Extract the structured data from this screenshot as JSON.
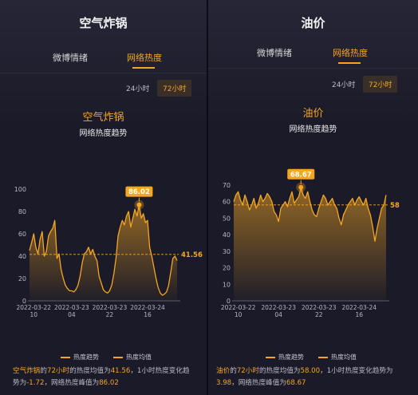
{
  "colors": {
    "accent": "#f5a623",
    "background": "#1a1a27",
    "text": "#f2f2f2"
  },
  "panels": [
    {
      "title": "空气炸锅",
      "tabs": [
        {
          "label": "微博情绪",
          "active": false
        },
        {
          "label": "网络热度",
          "active": true
        }
      ],
      "ranges": [
        {
          "label": "24小时",
          "active": false
        },
        {
          "label": "72小时",
          "active": true
        }
      ],
      "summary": {
        "keyword": "空气炸锅",
        "t1": "的",
        "hours": "72小时",
        "t2": "的热度均值为",
        "mean": "41.56",
        "t3": "，1小时热度变化趋势为",
        "change": "-1.72",
        "t4": "，网络热度峰值为",
        "peak": "86.02"
      }
    },
    {
      "title": "油价",
      "tabs": [
        {
          "label": "微博情绪",
          "active": false
        },
        {
          "label": "网络热度",
          "active": true
        }
      ],
      "ranges": [
        {
          "label": "24小时",
          "active": false
        },
        {
          "label": "72小时",
          "active": true
        }
      ],
      "summary": {
        "keyword": "油价",
        "t1": "的",
        "hours": "72小时",
        "t2": "的热度均值为",
        "mean": "58.00",
        "t3": "，1小时热度变化趋势为",
        "change": "3.98",
        "t4": "，网络热度峰值为",
        "peak": "68.67"
      }
    }
  ],
  "chart_data": [
    {
      "type": "area",
      "title": "空气炸锅",
      "subtitle": "网络热度趋势",
      "y_ticks": [
        "0",
        "20",
        "40",
        "60",
        "80",
        "100"
      ],
      "ylim": [
        0,
        100
      ],
      "x_ticks": [
        {
          "line1": "2022-03-22",
          "line2": "10"
        },
        {
          "line1": "2022-03-23",
          "line2": "04"
        },
        {
          "line1": "2022-03-23",
          "line2": "22"
        },
        {
          "line1": "2022-03-24",
          "line2": "16"
        }
      ],
      "x_tick_index": [
        2,
        20,
        38,
        56
      ],
      "mean": 41.56,
      "mean_label": "41.56",
      "peak": {
        "index": 52,
        "value": 86.02,
        "label": "86.02"
      },
      "legend": [
        "热度趋势",
        "热度均值"
      ],
      "grid": false,
      "series": [
        {
          "name": "热度趋势",
          "values": [
            45,
            52,
            60,
            48,
            42,
            55,
            62,
            40,
            44,
            58,
            62,
            65,
            72,
            38,
            42,
            28,
            20,
            14,
            11,
            9,
            9,
            8,
            10,
            14,
            22,
            34,
            42,
            44,
            48,
            42,
            46,
            40,
            36,
            22,
            16,
            10,
            8,
            7,
            9,
            14,
            24,
            38,
            58,
            66,
            72,
            68,
            76,
            80,
            66,
            74,
            82,
            76,
            86,
            74,
            78,
            70,
            72,
            48,
            40,
            30,
            20,
            12,
            7,
            5,
            6,
            8,
            14,
            26,
            38,
            40,
            36
          ]
        }
      ]
    },
    {
      "type": "area",
      "title": "油价",
      "subtitle": "网络热度趋势",
      "y_ticks": [
        "0",
        "10",
        "20",
        "30",
        "40",
        "50",
        "60",
        "70"
      ],
      "ylim": [
        0,
        70
      ],
      "x_ticks": [
        {
          "line1": "2022-03-22",
          "line2": "10"
        },
        {
          "line1": "2022-03-23",
          "line2": "04"
        },
        {
          "line1": "2022-03-23",
          "line2": "22"
        },
        {
          "line1": "2022-03-24",
          "line2": "16"
        }
      ],
      "x_tick_index": [
        2,
        20,
        38,
        56
      ],
      "mean": 58,
      "mean_label": "58",
      "peak": {
        "index": 30,
        "value": 68.67,
        "label": "68.67"
      },
      "legend": [
        "热度趋势",
        "热度均值"
      ],
      "grid": false,
      "series": [
        {
          "name": "热度趋势",
          "values": [
            60,
            64,
            66,
            61,
            58,
            64,
            60,
            55,
            58,
            62,
            56,
            59,
            64,
            60,
            62,
            65,
            63,
            60,
            54,
            52,
            48,
            56,
            58,
            60,
            57,
            62,
            66,
            59,
            61,
            63,
            68.67,
            64,
            62,
            66,
            60,
            55,
            52,
            51,
            56,
            60,
            64,
            62,
            58,
            60,
            62,
            58,
            56,
            50,
            46,
            52,
            55,
            58,
            60,
            62,
            58,
            61,
            63,
            60,
            58,
            62,
            56,
            52,
            45,
            36,
            44,
            50,
            56,
            58,
            64
          ]
        }
      ]
    }
  ]
}
